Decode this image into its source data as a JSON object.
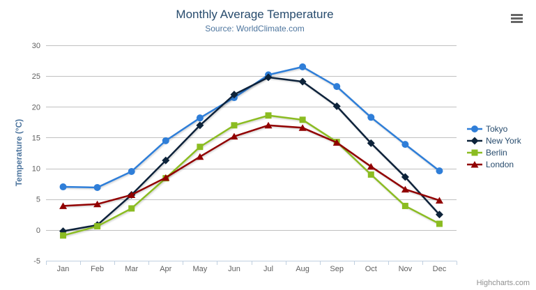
{
  "chart_data": {
    "type": "line",
    "title": "Monthly Average Temperature",
    "subtitle": "Source: WorldClimate.com",
    "xlabel": "",
    "ylabel": "Temperature (°C)",
    "categories": [
      "Jan",
      "Feb",
      "Mar",
      "Apr",
      "May",
      "Jun",
      "Jul",
      "Aug",
      "Sep",
      "Oct",
      "Nov",
      "Dec"
    ],
    "ylim": [
      -5,
      30
    ],
    "yticks": [
      -5,
      0,
      5,
      10,
      15,
      20,
      25,
      30
    ],
    "grid": true,
    "legend_position": "right",
    "series": [
      {
        "name": "Tokyo",
        "color": "#2f7ed8",
        "marker": "circle",
        "values": [
          7.0,
          6.9,
          9.5,
          14.5,
          18.2,
          21.5,
          25.2,
          26.5,
          23.3,
          18.3,
          13.9,
          9.6
        ]
      },
      {
        "name": "New York",
        "color": "#0d233a",
        "marker": "diamond",
        "values": [
          -0.2,
          0.8,
          5.7,
          11.3,
          17.0,
          22.0,
          24.8,
          24.1,
          20.1,
          14.1,
          8.6,
          2.5
        ]
      },
      {
        "name": "Berlin",
        "color": "#8bbc21",
        "marker": "square",
        "values": [
          -0.9,
          0.6,
          3.5,
          8.4,
          13.5,
          17.0,
          18.6,
          17.9,
          14.3,
          9.0,
          3.9,
          1.0
        ]
      },
      {
        "name": "London",
        "color": "#910000",
        "marker": "triangle",
        "values": [
          3.9,
          4.2,
          5.7,
          8.5,
          11.9,
          15.2,
          17.0,
          16.6,
          14.2,
          10.3,
          6.6,
          4.8
        ]
      }
    ],
    "credits": "Highcharts.com"
  },
  "style_colors": {
    "grid_line": "#c0c0c0",
    "axis_line": "#c0d0e0",
    "tick_label": "#606060",
    "title_text": "#274b6d",
    "subtitle_text": "#4d759e",
    "legend_text": "#274b6d",
    "menu_icon": "#666666",
    "credits_text": "#909090"
  },
  "icons": {
    "menu": "hamburger-icon"
  }
}
